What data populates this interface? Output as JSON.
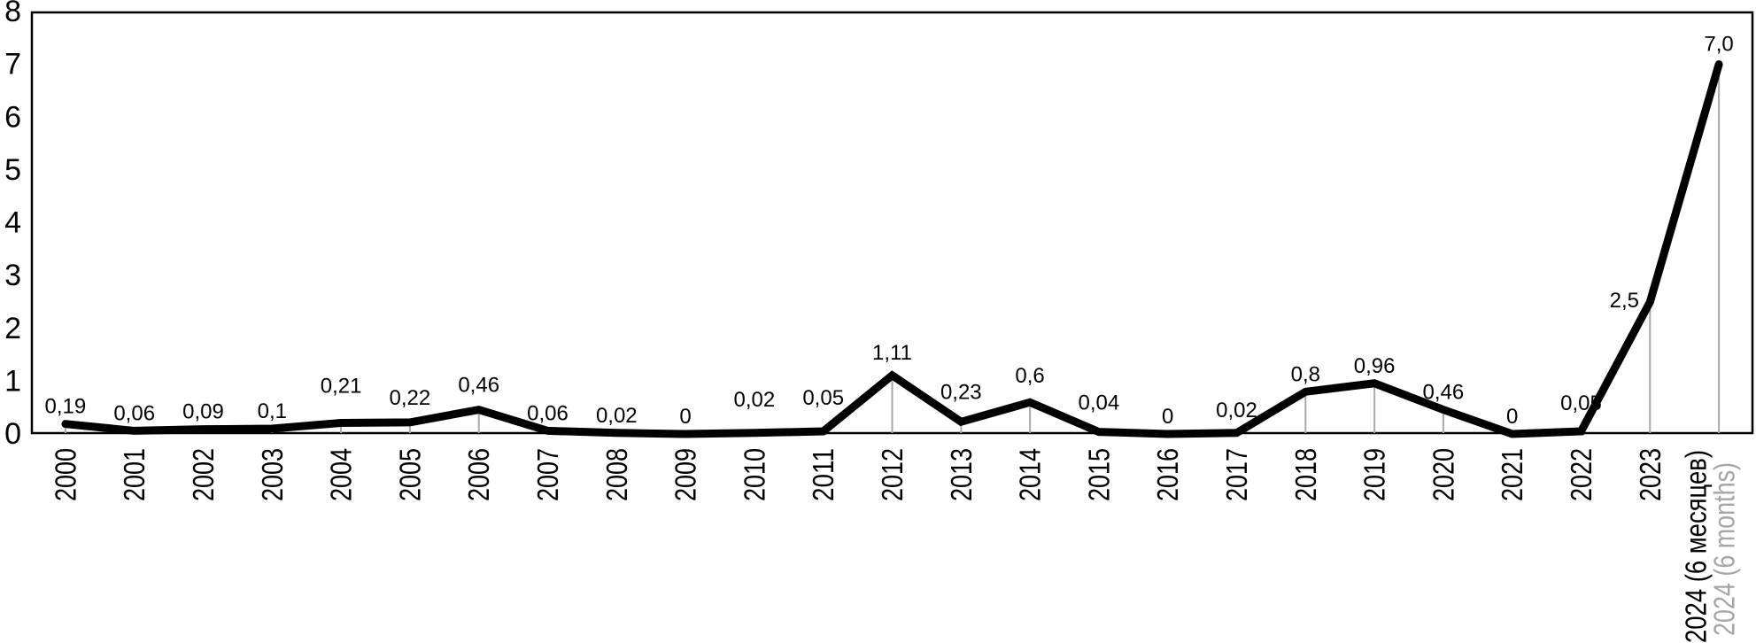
{
  "chart_data": {
    "type": "line",
    "title": "",
    "xlabel": "",
    "ylabel": "",
    "categories": [
      "2000",
      "2001",
      "2002",
      "2003",
      "2004",
      "2005",
      "2006",
      "2007",
      "2008",
      "2009",
      "2010",
      "2011",
      "2012",
      "2013",
      "2014",
      "2015",
      "2016",
      "2017",
      "2018",
      "2019",
      "2020",
      "2021",
      "2022",
      "2023",
      "2024 (6 месяцев)"
    ],
    "last_category_secondary_label": "2024 (6 months)",
    "values": [
      0.19,
      0.06,
      0.09,
      0.1,
      0.21,
      0.22,
      0.46,
      0.06,
      0.02,
      0,
      0.02,
      0.05,
      1.11,
      0.23,
      0.6,
      0.04,
      0,
      0.02,
      0.8,
      0.96,
      0.46,
      0,
      0.05,
      2.5,
      7.0
    ],
    "value_labels": [
      "0,19",
      "0,06",
      "0,09",
      "0,1",
      "0,21",
      "0,22",
      "0,46",
      "0,06",
      "0,02",
      "0",
      "0,02",
      "0,05",
      "1,11",
      "0,23",
      "0,6",
      "0,04",
      "0",
      "0,02",
      "0,8",
      "0,96",
      "0,46",
      "0",
      "0,05",
      "2,5",
      "7,0"
    ],
    "ylim": [
      0,
      8
    ],
    "yticks": [
      "0",
      "1",
      "2",
      "3",
      "4",
      "5",
      "6",
      "7",
      "8"
    ],
    "grid": "vertical drop lines from each data point to baseline",
    "legend": "none",
    "plot_border": "rectangle on all four sides",
    "x_tick_label_rotation_degrees": -90,
    "colors": {
      "line": "#000000",
      "dropline": "#a9a9a9",
      "text": "#000000",
      "secondary_label": "#a6a6a6",
      "border": "#000000",
      "background": "#ffffff"
    }
  }
}
